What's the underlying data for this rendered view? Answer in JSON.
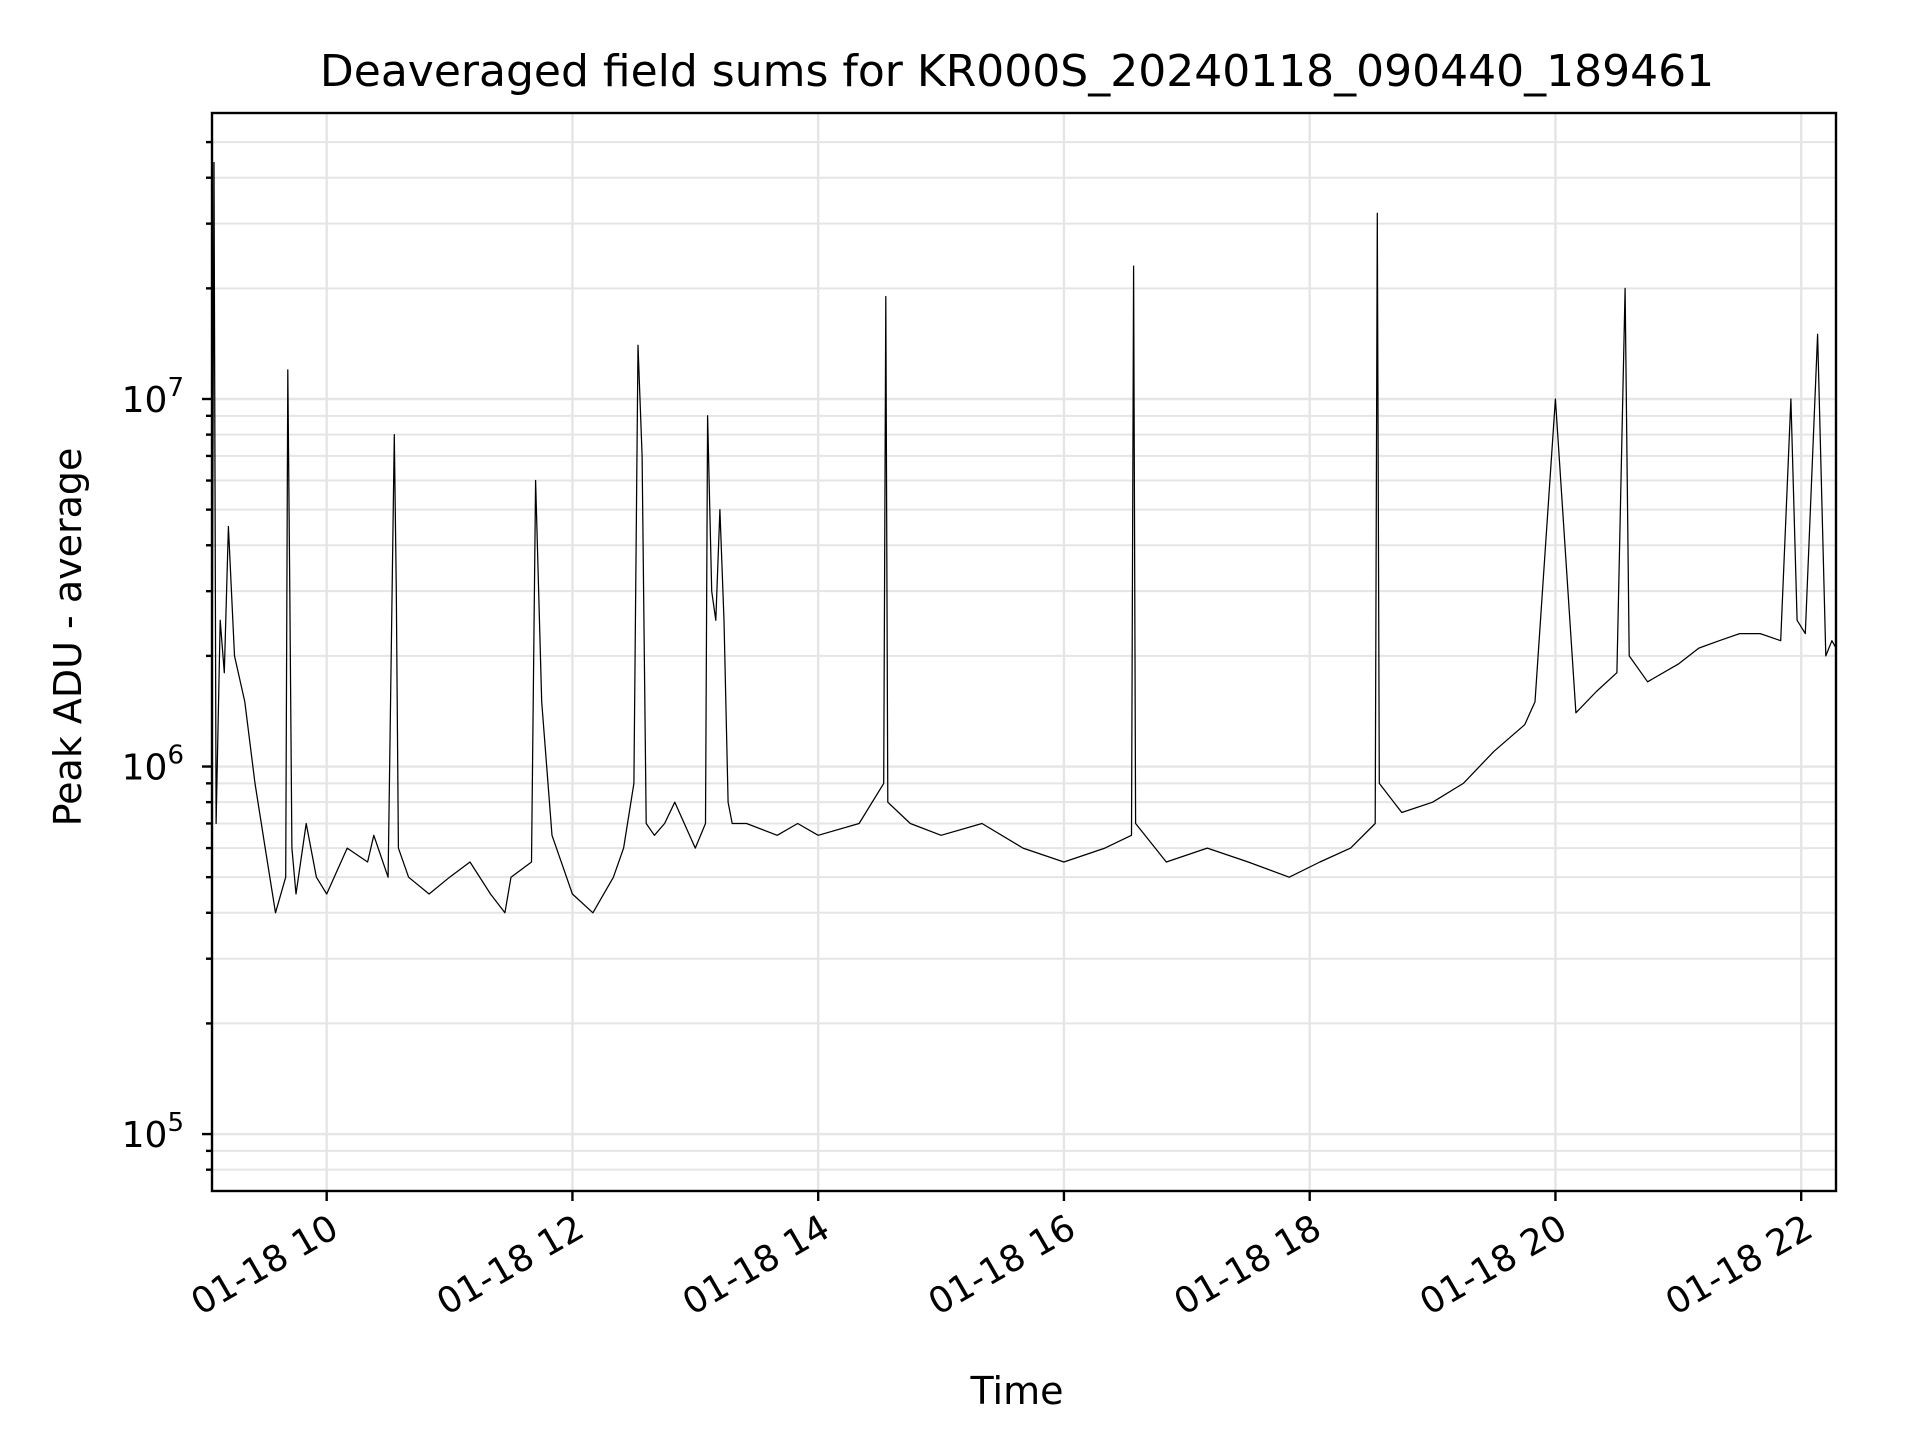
{
  "chart_data": {
    "type": "line",
    "title": "Deaveraged field sums for KR000S_20240118_090440_189461",
    "xlabel": "Time",
    "ylabel": "Peak ADU - average",
    "x_tick_labels": [
      "01-18 10",
      "01-18 12",
      "01-18 14",
      "01-18 16",
      "01-18 18",
      "01-18 20",
      "01-18 22"
    ],
    "x_ticks": [
      "2024-01-18 10:00",
      "2024-01-18 12:00",
      "2024-01-18 14:00",
      "2024-01-18 16:00",
      "2024-01-18 18:00",
      "2024-01-18 20:00",
      "2024-01-18 22:00"
    ],
    "y_tick_labels": [
      {
        "value": 100000,
        "base": "10",
        "exp": "5"
      },
      {
        "value": 1000000,
        "base": "10",
        "exp": "6"
      },
      {
        "value": 10000000,
        "base": "10",
        "exp": "7"
      }
    ],
    "xlim": [
      "2024-01-18 09:04",
      "2024-01-18 22:17"
    ],
    "ylim": [
      70000,
      60000000
    ],
    "yscale": "log",
    "grid": true,
    "series_color": "#000000",
    "series": [
      {
        "x": [
          "2024-01-18 09:04",
          "2024-01-18 09:05",
          "2024-01-18 09:06",
          "2024-01-18 09:08",
          "2024-01-18 09:10",
          "2024-01-18 09:12",
          "2024-01-18 09:15",
          "2024-01-18 09:20",
          "2024-01-18 09:25",
          "2024-01-18 09:30",
          "2024-01-18 09:35",
          "2024-01-18 09:40",
          "2024-01-18 09:41",
          "2024-01-18 09:42",
          "2024-01-18 09:43",
          "2024-01-18 09:45",
          "2024-01-18 09:50",
          "2024-01-18 09:55",
          "2024-01-18 10:00",
          "2024-01-18 10:10",
          "2024-01-18 10:20",
          "2024-01-18 10:23",
          "2024-01-18 10:30",
          "2024-01-18 10:33",
          "2024-01-18 10:34",
          "2024-01-18 10:35",
          "2024-01-18 10:40",
          "2024-01-18 10:50",
          "2024-01-18 11:00",
          "2024-01-18 11:10",
          "2024-01-18 11:20",
          "2024-01-18 11:27",
          "2024-01-18 11:30",
          "2024-01-18 11:40",
          "2024-01-18 11:42",
          "2024-01-18 11:45",
          "2024-01-18 11:50",
          "2024-01-18 12:00",
          "2024-01-18 12:10",
          "2024-01-18 12:20",
          "2024-01-18 12:25",
          "2024-01-18 12:30",
          "2024-01-18 12:32",
          "2024-01-18 12:34",
          "2024-01-18 12:36",
          "2024-01-18 12:40",
          "2024-01-18 12:45",
          "2024-01-18 12:50",
          "2024-01-18 13:00",
          "2024-01-18 13:05",
          "2024-01-18 13:06",
          "2024-01-18 13:08",
          "2024-01-18 13:10",
          "2024-01-18 13:12",
          "2024-01-18 13:14",
          "2024-01-18 13:16",
          "2024-01-18 13:18",
          "2024-01-18 13:25",
          "2024-01-18 13:40",
          "2024-01-18 13:50",
          "2024-01-18 14:00",
          "2024-01-18 14:20",
          "2024-01-18 14:32",
          "2024-01-18 14:33",
          "2024-01-18 14:34",
          "2024-01-18 14:45",
          "2024-01-18 15:00",
          "2024-01-18 15:20",
          "2024-01-18 15:40",
          "2024-01-18 16:00",
          "2024-01-18 16:20",
          "2024-01-18 16:33",
          "2024-01-18 16:34",
          "2024-01-18 16:35",
          "2024-01-18 16:50",
          "2024-01-18 17:10",
          "2024-01-18 17:30",
          "2024-01-18 17:50",
          "2024-01-18 18:05",
          "2024-01-18 18:20",
          "2024-01-18 18:32",
          "2024-01-18 18:33",
          "2024-01-18 18:34",
          "2024-01-18 18:45",
          "2024-01-18 19:00",
          "2024-01-18 19:15",
          "2024-01-18 19:30",
          "2024-01-18 19:45",
          "2024-01-18 19:50",
          "2024-01-18 20:00",
          "2024-01-18 20:10",
          "2024-01-18 20:20",
          "2024-01-18 20:30",
          "2024-01-18 20:34",
          "2024-01-18 20:36",
          "2024-01-18 20:45",
          "2024-01-18 21:00",
          "2024-01-18 21:10",
          "2024-01-18 21:20",
          "2024-01-18 21:30",
          "2024-01-18 21:40",
          "2024-01-18 21:50",
          "2024-01-18 21:55",
          "2024-01-18 21:58",
          "2024-01-18 22:02",
          "2024-01-18 22:08",
          "2024-01-18 22:12",
          "2024-01-18 22:15",
          "2024-01-18 22:17"
        ],
        "y": [
          1200000,
          44000000,
          700000,
          2500000,
          1800000,
          4500000,
          2000000,
          1500000,
          900000,
          600000,
          400000,
          500000,
          12000000,
          3000000,
          600000,
          450000,
          700000,
          500000,
          450000,
          600000,
          550000,
          650000,
          500000,
          8000000,
          3000000,
          600000,
          500000,
          450000,
          500000,
          550000,
          450000,
          400000,
          500000,
          550000,
          6000000,
          1500000,
          650000,
          450000,
          400000,
          500000,
          600000,
          900000,
          14000000,
          7000000,
          700000,
          650000,
          700000,
          800000,
          600000,
          700000,
          9000000,
          3000000,
          2500000,
          5000000,
          2500000,
          800000,
          700000,
          700000,
          650000,
          700000,
          650000,
          700000,
          900000,
          19000000,
          800000,
          700000,
          650000,
          700000,
          600000,
          550000,
          600000,
          650000,
          23000000,
          700000,
          550000,
          600000,
          550000,
          500000,
          550000,
          600000,
          700000,
          32000000,
          900000,
          750000,
          800000,
          900000,
          1100000,
          1300000,
          1500000,
          10000000,
          1400000,
          1600000,
          1800000,
          20000000,
          2000000,
          1700000,
          1900000,
          2100000,
          2200000,
          2300000,
          2300000,
          2200000,
          10000000,
          2500000,
          2300000,
          15000000,
          2000000,
          2200000,
          2100000
        ]
      }
    ]
  }
}
